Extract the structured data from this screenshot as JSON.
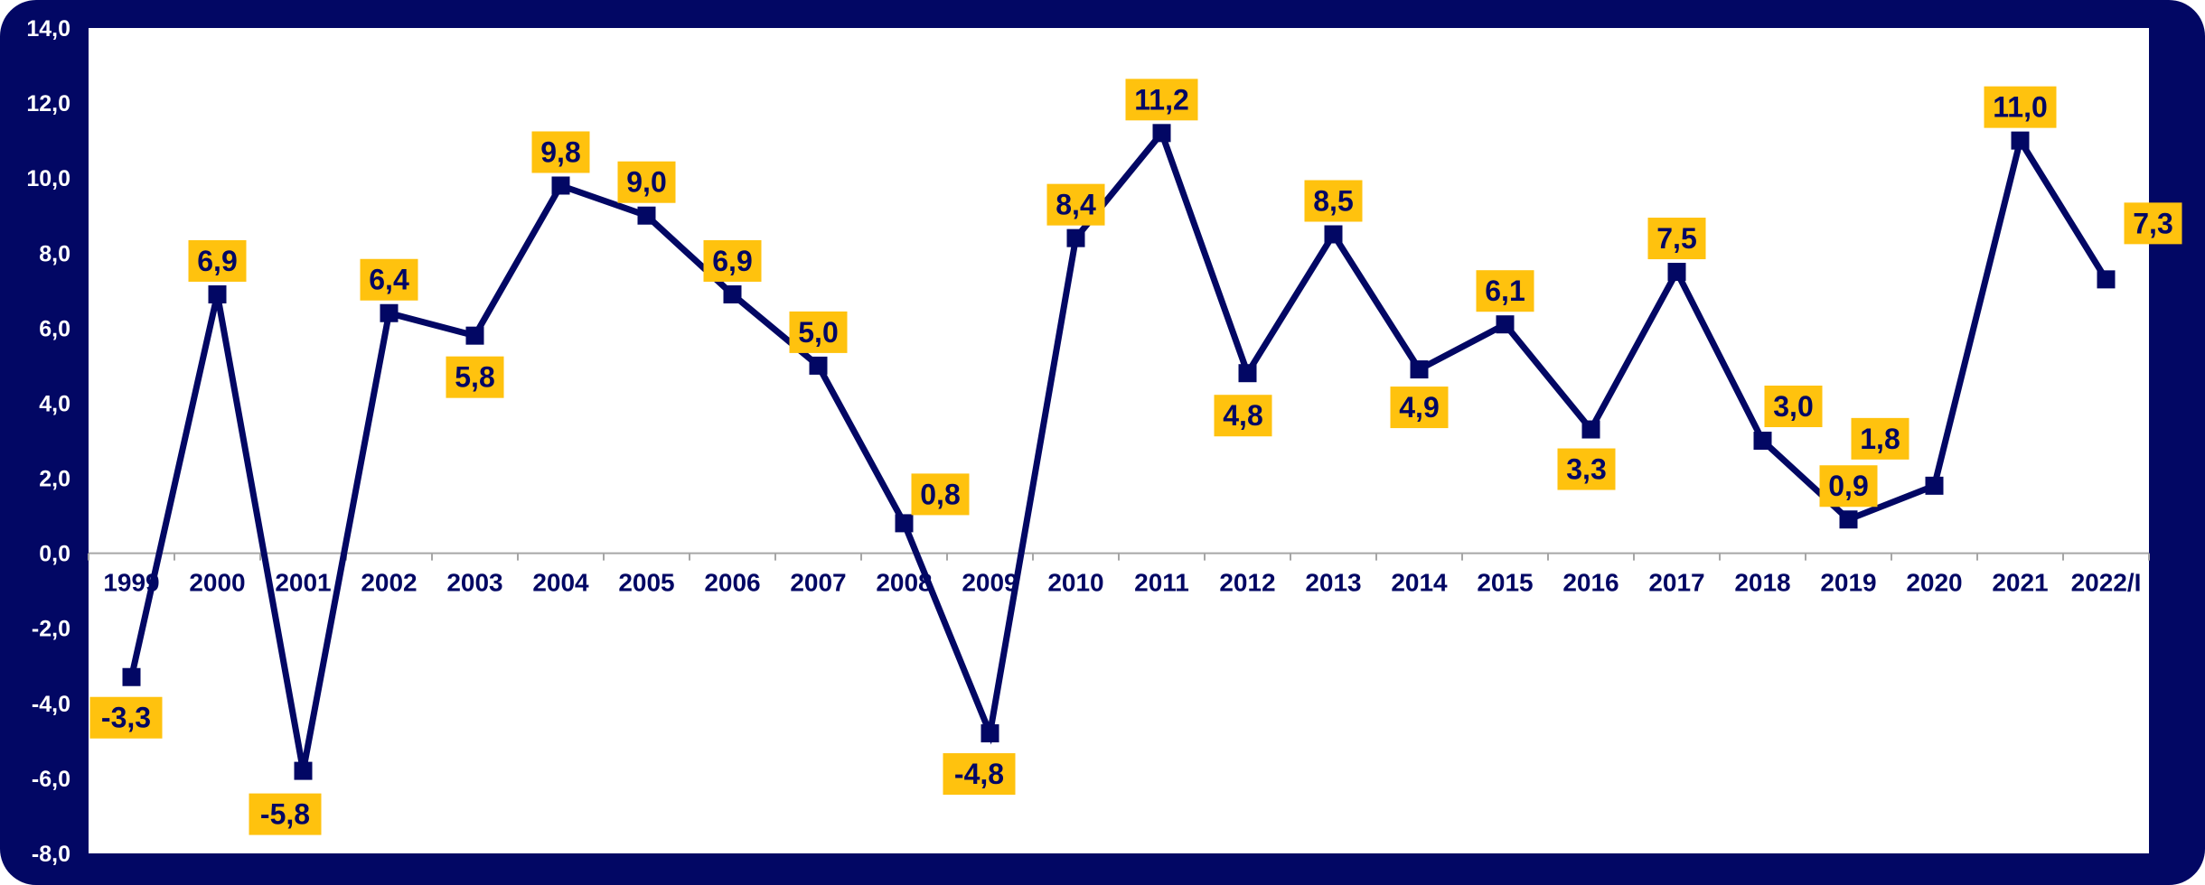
{
  "chart_data": {
    "type": "line",
    "categories": [
      "1999",
      "2000",
      "2001",
      "2002",
      "2003",
      "2004",
      "2005",
      "2006",
      "2007",
      "2008",
      "2009",
      "2010",
      "2011",
      "2012",
      "2013",
      "2014",
      "2015",
      "2016",
      "2017",
      "2018",
      "2019",
      "2020",
      "2021",
      "2022/I"
    ],
    "series": [
      {
        "values": [
          -3.3,
          6.9,
          -5.8,
          6.4,
          5.8,
          9.8,
          9.0,
          6.9,
          5.0,
          0.8,
          -4.8,
          8.4,
          11.2,
          4.8,
          8.5,
          4.9,
          6.1,
          3.3,
          7.5,
          3.0,
          0.9,
          1.8,
          11.0,
          7.3
        ],
        "labels": [
          "-3,3",
          "6,9",
          "-5,8",
          "6,4",
          "5,8",
          "9,8",
          "9,0",
          "6,9",
          "5,0",
          "0,8",
          "-4,8",
          "8,4",
          "11,2",
          "4,8",
          "8,5",
          "4,9",
          "6,1",
          "3,3",
          "7,5",
          "3,0",
          "0,9",
          "1,8",
          "11,0",
          "7,3"
        ]
      }
    ],
    "ylim": [
      -8,
      14
    ],
    "yticks": [
      "14,0",
      "12,0",
      "10,0",
      "8,0",
      "6,0",
      "4,0",
      "2,0",
      "0,0",
      "-2,0",
      "-4,0",
      "-6,0",
      "-8,0"
    ],
    "title": "",
    "xlabel": "",
    "ylabel": "",
    "grid": false,
    "legend": "none",
    "colors": {
      "frame": "#020764",
      "plot_background": "#ffffff",
      "line": "#020764",
      "marker": "#020764",
      "label_background": "#FFC20E",
      "label_text": "#020764",
      "tick_text": "#ffffff",
      "axis": "#A6A6A6"
    }
  }
}
